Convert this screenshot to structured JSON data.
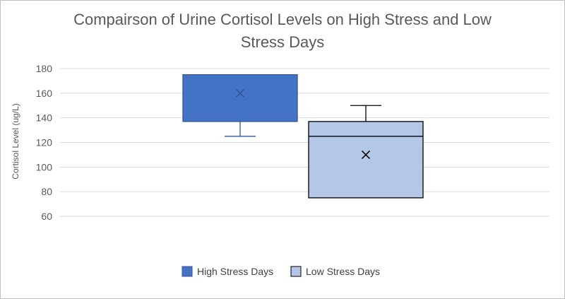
{
  "chart_data": {
    "type": "box",
    "title_lines": [
      "Compairson of Urine Cortisol Levels on High Stress and Low",
      "Stress Days"
    ],
    "ylabel": "Cortisol Level (ug/L)",
    "xlabel": "",
    "ylim": [
      60,
      180
    ],
    "yticks": [
      60,
      80,
      100,
      120,
      140,
      160,
      180
    ],
    "grid": true,
    "legend_position": "bottom",
    "series": [
      {
        "name": "High Stress Days",
        "color": "#4472c4",
        "min": 125,
        "q1": 137,
        "median": 175,
        "q3": 175,
        "max": 175,
        "mean": 160
      },
      {
        "name": "Low Stress Days",
        "color": "#b4c7e7",
        "min": 75,
        "q1": 75,
        "median": 125,
        "q3": 137,
        "max": 150,
        "mean": 110
      }
    ]
  }
}
